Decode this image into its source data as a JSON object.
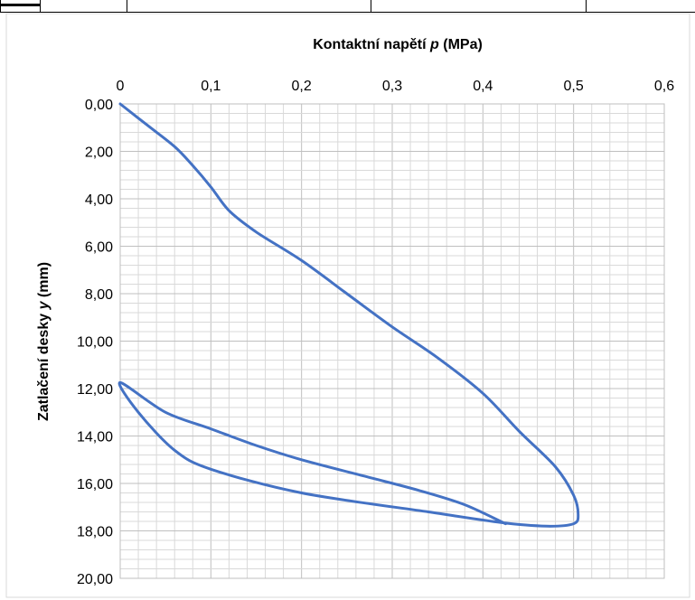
{
  "chart_data": {
    "type": "line",
    "title": "",
    "xlabel_main": "Kontaktní napětí",
    "xlabel_var": "p",
    "xlabel_unit": "(MPa)",
    "ylabel_main": "Zatlačení desky",
    "ylabel_var": "y",
    "ylabel_unit": "(mm)",
    "xlim": [
      0,
      0.6
    ],
    "ylim": [
      0,
      20
    ],
    "y_inverted": true,
    "x_axis_position": "top",
    "x_ticks": [
      0,
      0.1,
      0.2,
      0.3,
      0.4,
      0.5,
      0.6
    ],
    "x_tick_labels": [
      "0",
      "0,1",
      "0,2",
      "0,3",
      "0,4",
      "0,5",
      "0,6"
    ],
    "y_ticks": [
      0,
      2,
      4,
      6,
      8,
      10,
      12,
      14,
      16,
      18,
      20
    ],
    "y_tick_labels": [
      "0,00",
      "2,00",
      "4,00",
      "6,00",
      "8,00",
      "10,00",
      "12,00",
      "14,00",
      "16,00",
      "18,00",
      "20,00"
    ],
    "grid": true,
    "color": "#4472C4",
    "series": [
      {
        "x": [
          0,
          0.03,
          0.06,
          0.08,
          0.1,
          0.12,
          0.15,
          0.2,
          0.25,
          0.3,
          0.35,
          0.4,
          0.44,
          0.48,
          0.5,
          0.505,
          0.5,
          0.47,
          0.42,
          0.34,
          0.2,
          0.1,
          0.06,
          0.02,
          0,
          0.05,
          0.1,
          0.15,
          0.2,
          0.27,
          0.33,
          0.38,
          0.425
        ],
        "y": [
          0,
          0.9,
          1.8,
          2.6,
          3.5,
          4.5,
          5.4,
          6.6,
          8.0,
          9.4,
          10.7,
          12.2,
          13.8,
          15.3,
          16.5,
          17.3,
          17.7,
          17.8,
          17.65,
          17.2,
          16.4,
          15.4,
          14.6,
          13.0,
          11.75,
          13.0,
          13.7,
          14.4,
          15.0,
          15.7,
          16.3,
          16.9,
          17.7
        ]
      }
    ]
  }
}
